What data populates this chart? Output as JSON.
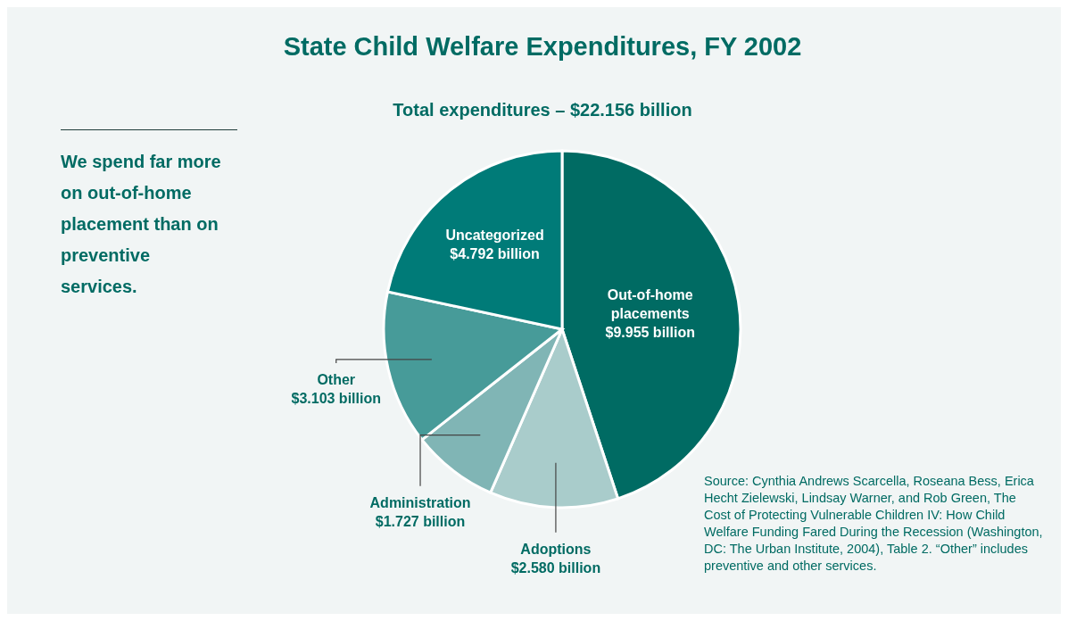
{
  "chart_data": {
    "type": "pie",
    "title": "State Child Welfare Expenditures, FY 2002",
    "subtitle": "Total expenditures – $22.156 billion",
    "categories": [
      "Out-of-home placements",
      "Adoptions",
      "Administration",
      "Other",
      "Uncategorized"
    ],
    "values": [
      9.955,
      2.58,
      1.727,
      3.103,
      4.792
    ],
    "value_labels": [
      "$9.955 billion",
      "$2.580 billion",
      "$1.727 billion",
      "$3.103 billion",
      "$4.792 billion"
    ],
    "colors": [
      "#006b63",
      "#a9cccb",
      "#80b5b5",
      "#479b99",
      "#007b78"
    ],
    "annotations": [
      "We spend far more on out-of-home placement than on preventive services.",
      "Source: Cynthia Andrews Scarcella, Roseana Bess, Erica Hecht Zielewski, Lindsay Warner, and Rob Green, The Cost of Protecting Vulnerable Children IV: How Child Welfare Funding Fared During the Recession (Washington, DC: The Urban Institute, 2004), Table 2. “Other” includes preventive and other services."
    ]
  }
}
